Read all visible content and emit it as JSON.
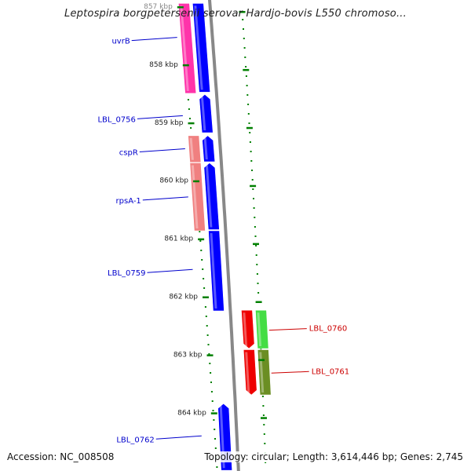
{
  "title": "Leptospira borgpetersenii serovar Hardjo-bovis L550 chromoso...",
  "accession": "Accession: NC_008508",
  "summary": {
    "topology": "Topology: circular;",
    "length": "Length: 3,614,446 bp;",
    "genes": "Genes: 2,745"
  },
  "colors": {
    "forward_cds": "#0000ff",
    "uvrB": "#ff33aa",
    "cspR": "#f08080",
    "rpsA": "#f08080",
    "reverse_red": "#ee0000",
    "reverse_green": "#44dd44",
    "reverse_olive": "#6b8e23",
    "backbone": "#888888",
    "tick": "#008000",
    "left_label": "#0000cc",
    "right_label": "#cc0000"
  },
  "ticks": [
    {
      "label": "857 kbp",
      "pos": 857
    },
    {
      "label": "858 kbp",
      "pos": 858
    },
    {
      "label": "859 kbp",
      "pos": 859
    },
    {
      "label": "860 kbp",
      "pos": 860
    },
    {
      "label": "861 kbp",
      "pos": 861
    },
    {
      "label": "862 kbp",
      "pos": 862
    },
    {
      "label": "863 kbp",
      "pos": 863
    },
    {
      "label": "864 kbp",
      "pos": 864
    }
  ],
  "features": [
    {
      "name": "uvrB",
      "side": "left",
      "track": "outer",
      "strand": "none",
      "color": "uvrB",
      "start": 856.95,
      "end": 858.5
    },
    {
      "name": "",
      "side": "left",
      "track": "inner",
      "strand": "none",
      "color": "forward_cds",
      "start": 856.95,
      "end": 858.48
    },
    {
      "name": "LBL_0756",
      "side": "left",
      "track": "inner",
      "strand": "plus",
      "color": "forward_cds",
      "start": 858.52,
      "end": 859.18
    },
    {
      "name": "cspR",
      "side": "left",
      "track": "outer",
      "strand": "none",
      "color": "cspR",
      "start": 859.23,
      "end": 859.69
    },
    {
      "name": "",
      "side": "left",
      "track": "inner",
      "strand": "plus",
      "color": "forward_cds",
      "start": 859.23,
      "end": 859.68
    },
    {
      "name": "rpsA-1",
      "side": "left",
      "track": "outer",
      "strand": "none",
      "color": "rpsA",
      "start": 859.7,
      "end": 860.87
    },
    {
      "name": "",
      "side": "left",
      "track": "inner",
      "strand": "plus",
      "color": "forward_cds",
      "start": 859.7,
      "end": 860.85
    },
    {
      "name": "LBL_0759",
      "side": "left",
      "track": "inner",
      "strand": "none",
      "color": "forward_cds",
      "start": 860.87,
      "end": 862.25
    },
    {
      "name": "LBL_0760",
      "side": "right",
      "track": "inner",
      "strand": "minus",
      "color": "reverse_red",
      "start": 862.24,
      "end": 862.9
    },
    {
      "name": "",
      "side": "right",
      "track": "outer",
      "strand": "none",
      "color": "reverse_green",
      "start": 862.24,
      "end": 862.9
    },
    {
      "name": "LBL_0761",
      "side": "right",
      "track": "inner",
      "strand": "minus",
      "color": "reverse_red",
      "start": 862.92,
      "end": 863.7
    },
    {
      "name": "",
      "side": "right",
      "track": "outer",
      "strand": "none",
      "color": "reverse_olive",
      "start": 862.92,
      "end": 863.7
    },
    {
      "name": "LBL_0762",
      "side": "left",
      "track": "inner",
      "strand": "plus",
      "color": "forward_cds",
      "start": 863.85,
      "end": 865.0
    }
  ],
  "labels": [
    {
      "text": "uvrB",
      "side": "left",
      "color": "left_label",
      "anchor": 857.55
    },
    {
      "text": "LBL_0756",
      "side": "left",
      "color": "left_label",
      "anchor": 858.9
    },
    {
      "text": "cspR",
      "side": "left",
      "color": "left_label",
      "anchor": 859.47
    },
    {
      "text": "rpsA-1",
      "side": "left",
      "color": "left_label",
      "anchor": 860.3
    },
    {
      "text": "LBL_0759",
      "side": "left",
      "color": "left_label",
      "anchor": 861.55
    },
    {
      "text": "LBL_0760",
      "side": "right",
      "color": "right_label",
      "anchor": 862.57
    },
    {
      "text": "LBL_0761",
      "side": "right",
      "color": "right_label",
      "anchor": 863.31
    },
    {
      "text": "LBL_0762",
      "side": "left",
      "color": "left_label",
      "anchor": 864.42
    }
  ]
}
